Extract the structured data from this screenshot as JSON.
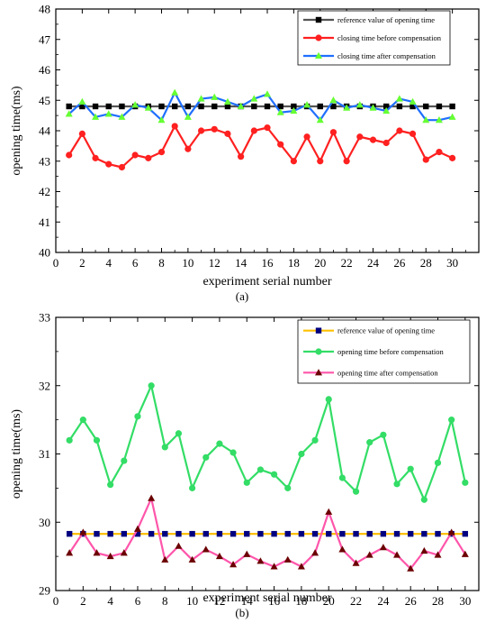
{
  "chart_data": [
    {
      "type": "line",
      "panel_label": "(a)",
      "xlabel": "experiment serial number",
      "ylabel": "opening time(ms)",
      "xlim": [
        0,
        32
      ],
      "ylim": [
        40,
        48
      ],
      "xticks": [
        0,
        2,
        4,
        6,
        8,
        10,
        12,
        14,
        16,
        18,
        20,
        22,
        24,
        26,
        28,
        30
      ],
      "yticks": [
        40,
        41,
        42,
        43,
        44,
        45,
        46,
        47,
        48
      ],
      "legend_position": "top-right",
      "x": [
        1,
        2,
        3,
        4,
        5,
        6,
        7,
        8,
        9,
        10,
        11,
        12,
        13,
        14,
        15,
        16,
        17,
        18,
        19,
        20,
        21,
        22,
        23,
        24,
        25,
        26,
        27,
        28,
        29,
        30
      ],
      "series": [
        {
          "name": "reference value of opening time",
          "line_color": "#555555",
          "marker_color": "#000000",
          "marker": "square",
          "values": [
            44.8,
            44.8,
            44.8,
            44.8,
            44.8,
            44.8,
            44.8,
            44.8,
            44.8,
            44.8,
            44.8,
            44.8,
            44.8,
            44.8,
            44.8,
            44.8,
            44.8,
            44.8,
            44.8,
            44.8,
            44.8,
            44.8,
            44.8,
            44.8,
            44.8,
            44.8,
            44.8,
            44.8,
            44.8,
            44.8
          ]
        },
        {
          "name": "closing time before compensation",
          "line_color": "#ff2020",
          "marker_color": "#ff2020",
          "marker": "circle",
          "values": [
            43.2,
            43.9,
            43.1,
            42.9,
            42.8,
            43.2,
            43.1,
            43.3,
            44.15,
            43.4,
            44.0,
            44.05,
            43.9,
            43.15,
            44.0,
            44.1,
            43.55,
            43.0,
            43.8,
            43.0,
            43.95,
            43.0,
            43.8,
            43.7,
            43.6,
            44.0,
            43.9,
            43.05,
            43.3,
            43.1
          ]
        },
        {
          "name": "closing time after compensation",
          "line_color": "#1f6fff",
          "marker_color": "#66ff33",
          "marker": "triangle",
          "values": [
            44.55,
            44.95,
            44.45,
            44.55,
            44.45,
            44.85,
            44.75,
            44.35,
            45.25,
            44.45,
            45.05,
            45.1,
            44.95,
            44.8,
            45.05,
            45.2,
            44.6,
            44.65,
            44.85,
            44.35,
            45.0,
            44.75,
            44.85,
            44.75,
            44.65,
            45.05,
            44.95,
            44.35,
            44.35,
            44.45
          ]
        }
      ]
    },
    {
      "type": "line",
      "panel_label": "(b)",
      "xlabel": "experiment serial number",
      "ylabel": "opening time(ms)",
      "xlim": [
        0,
        31
      ],
      "ylim": [
        29,
        33
      ],
      "xticks": [
        0,
        2,
        4,
        6,
        8,
        10,
        12,
        14,
        16,
        18,
        20,
        22,
        24,
        26,
        28,
        30
      ],
      "yticks": [
        29,
        30,
        31,
        32,
        33
      ],
      "legend_position": "top-right",
      "x": [
        1,
        2,
        3,
        4,
        5,
        6,
        7,
        8,
        9,
        10,
        11,
        12,
        13,
        14,
        15,
        16,
        17,
        18,
        19,
        20,
        21,
        22,
        23,
        24,
        25,
        26,
        27,
        28,
        29,
        30
      ],
      "series": [
        {
          "name": "reference value of opening time",
          "line_color": "#ffc000",
          "marker_color": "#000080",
          "marker": "square",
          "values": [
            29.83,
            29.83,
            29.83,
            29.83,
            29.83,
            29.83,
            29.83,
            29.83,
            29.83,
            29.83,
            29.83,
            29.83,
            29.83,
            29.83,
            29.83,
            29.83,
            29.83,
            29.83,
            29.83,
            29.83,
            29.83,
            29.83,
            29.83,
            29.83,
            29.83,
            29.83,
            29.83,
            29.83,
            29.83,
            29.83
          ]
        },
        {
          "name": "opening time before compensation",
          "line_color": "#33dd66",
          "marker_color": "#33dd66",
          "marker": "circle",
          "values": [
            31.2,
            31.5,
            31.2,
            30.55,
            30.9,
            31.55,
            32.0,
            31.1,
            31.3,
            30.5,
            30.95,
            31.15,
            31.02,
            30.58,
            30.77,
            30.7,
            30.5,
            31.0,
            31.2,
            31.8,
            30.65,
            30.45,
            31.17,
            31.28,
            30.56,
            30.78,
            30.33,
            30.87,
            31.5,
            30.58
          ]
        },
        {
          "name": "opening time after compensation",
          "line_color": "#ff55aa",
          "marker_color": "#6b0000",
          "marker": "triangle",
          "values": [
            29.55,
            29.85,
            29.55,
            29.5,
            29.55,
            29.9,
            30.35,
            29.45,
            29.65,
            29.45,
            29.6,
            29.5,
            29.38,
            29.53,
            29.43,
            29.35,
            29.45,
            29.35,
            29.55,
            30.15,
            29.6,
            29.4,
            29.52,
            29.63,
            29.52,
            29.32,
            29.58,
            29.52,
            29.85,
            29.53
          ]
        }
      ]
    }
  ]
}
